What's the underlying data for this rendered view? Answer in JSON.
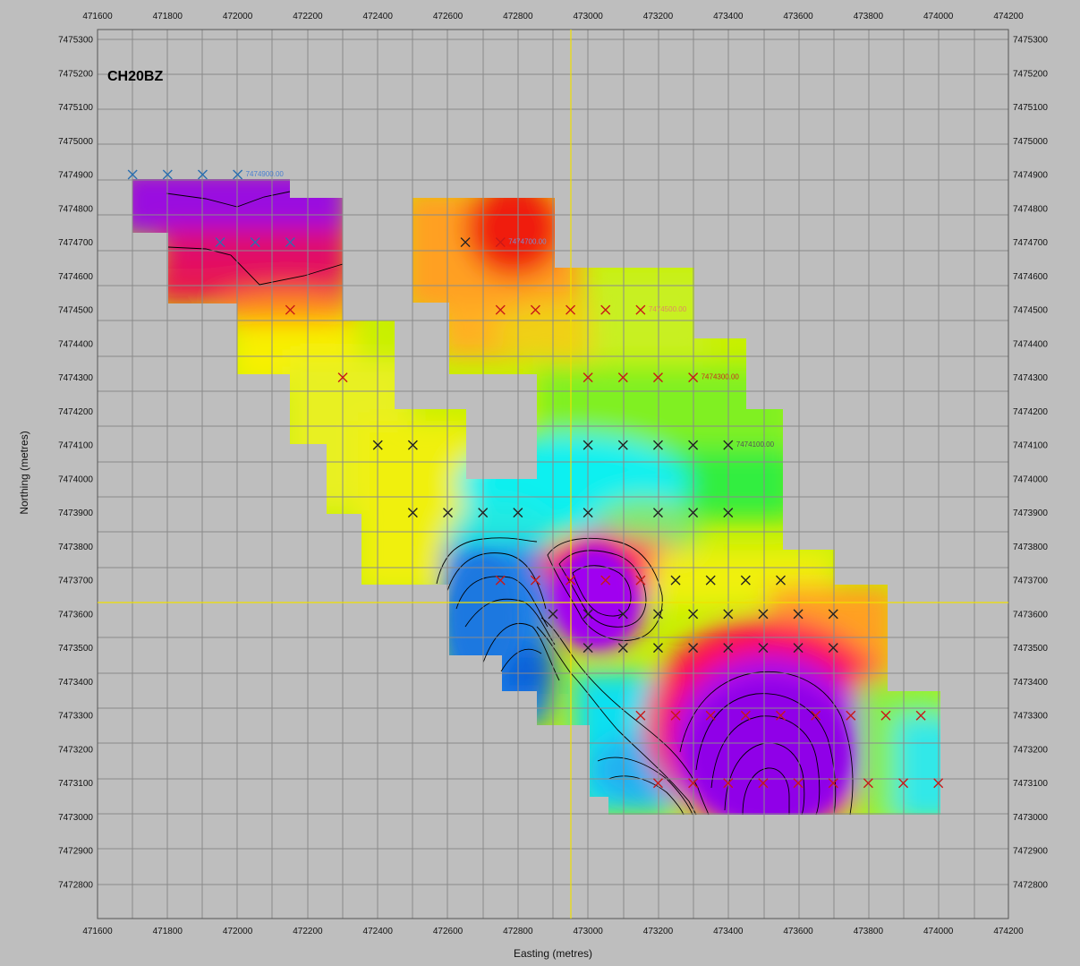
{
  "map": {
    "title": "CH20BZ",
    "xlabel": "Easting (metres)",
    "ylabel": "Northing (metres)",
    "x_ticks": [
      "471600",
      "471800",
      "472000",
      "472200",
      "472400",
      "472600",
      "472800",
      "473000",
      "473200",
      "473400",
      "473600",
      "473800",
      "474000",
      "474200"
    ],
    "y_ticks": [
      "7475300",
      "7475200",
      "7475100",
      "7475000",
      "7474900",
      "7474800",
      "7474700",
      "7474600",
      "7474500",
      "7474400",
      "7474300",
      "7474200",
      "7474100",
      "7474000",
      "7473900",
      "7473800",
      "7473700",
      "7473600",
      "7473500",
      "7473400",
      "7473300",
      "7473200",
      "7473100",
      "7473000",
      "7472900",
      "7472800"
    ],
    "line_labels": [
      {
        "text": "7474900.00",
        "e": 472000,
        "n": 7474900,
        "color": "#4a7fd0"
      },
      {
        "text": "7474700.00",
        "e": 472750,
        "n": 7474700,
        "color": "#7a8fd0"
      },
      {
        "text": "7474500.00",
        "e": 473150,
        "n": 7474500,
        "color": "#e08a60"
      },
      {
        "text": "7474300.00",
        "e": 473300,
        "n": 7474300,
        "color": "#c83020"
      },
      {
        "text": "7474100.00",
        "e": 473400,
        "n": 7474100,
        "color": "#555555"
      }
    ],
    "crosshair": {
      "e": 472950,
      "n": 7473700
    },
    "colors": {
      "background": "#bebebe",
      "grid": "#8a8a8a",
      "crosshair": "#f0e000",
      "station_dark": "#222222",
      "station_red": "#c81818",
      "station_blue": "#2a6fb0",
      "contour": "#000000"
    }
  }
}
